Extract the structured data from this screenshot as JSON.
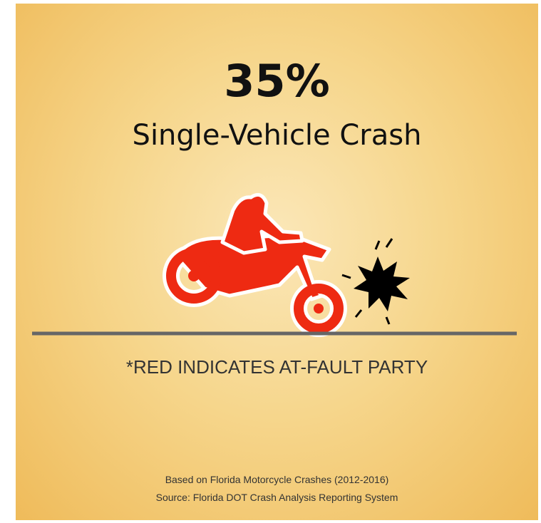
{
  "stat": "35%",
  "label": "Single-Vehicle Crash",
  "note": "*RED INDICATES AT-FAULT PARTY",
  "source": [
    "Based on Florida Motorcycle Crashes (2012-2016)",
    "Source: Florida DOT Crash Analysis Reporting System"
  ]
}
